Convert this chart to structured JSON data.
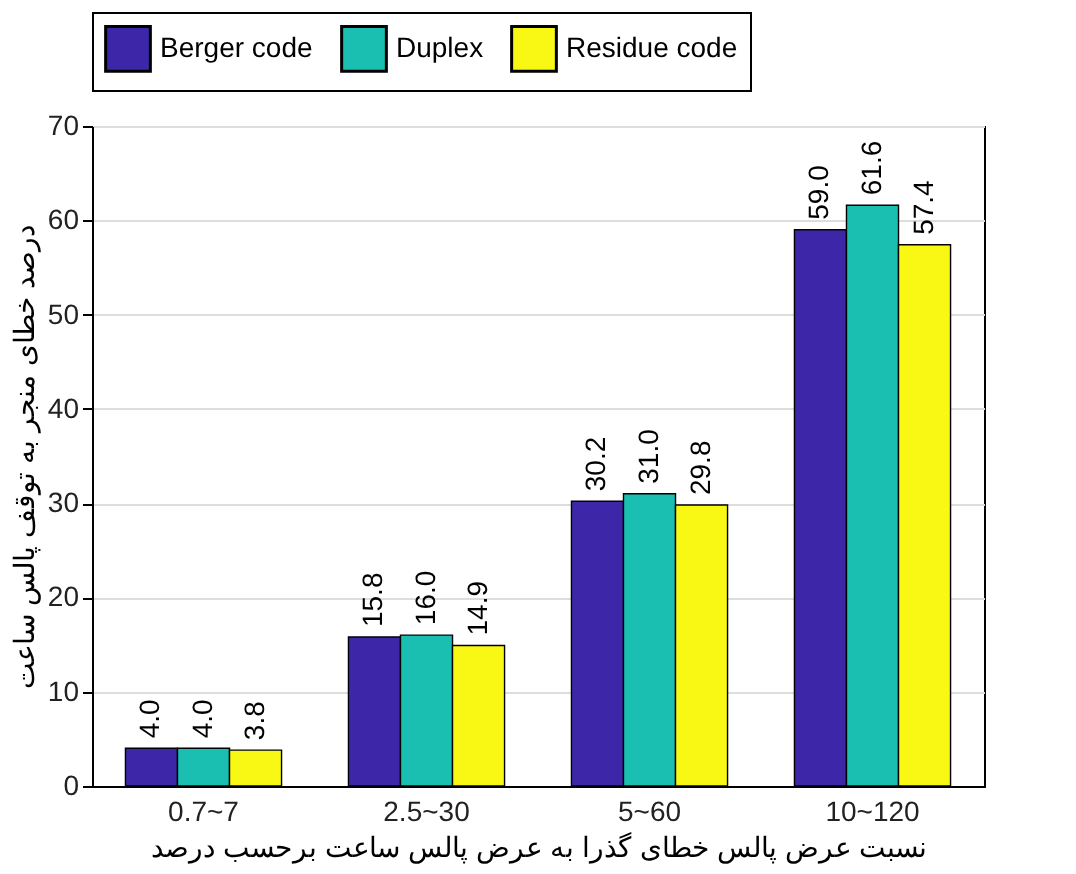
{
  "chart_data": {
    "type": "bar",
    "xlabel": "نسبت عرض پالس خطای گذرا به عرض پالس ساعت برحسب درصد",
    "ylabel": "درصد خطای منجر به توقف پالس ساعت",
    "categories": [
      "0.7~7",
      "2.5~30",
      "5~60",
      "10~120"
    ],
    "series": [
      {
        "name": "Berger code",
        "color": "#3d27a8",
        "values": [
          4.0,
          15.8,
          30.2,
          59.0
        ],
        "value_labels": [
          "4.0",
          "15.8",
          "30.2",
          "59.0"
        ]
      },
      {
        "name": "Duplex",
        "color": "#1abfb2",
        "values": [
          4.0,
          16.0,
          31.0,
          61.6
        ],
        "value_labels": [
          "4.0",
          "16.0",
          "31.0",
          "61.6"
        ]
      },
      {
        "name": "Residue code",
        "color": "#f8f814",
        "values": [
          3.8,
          14.9,
          29.8,
          57.4
        ],
        "value_labels": [
          "3.8",
          "14.9",
          "29.8",
          "57.4"
        ]
      }
    ],
    "ylim": [
      0,
      70
    ],
    "yticks": [
      0,
      10,
      20,
      30,
      40,
      50,
      60,
      70
    ],
    "grid": "y",
    "legend": "top"
  }
}
